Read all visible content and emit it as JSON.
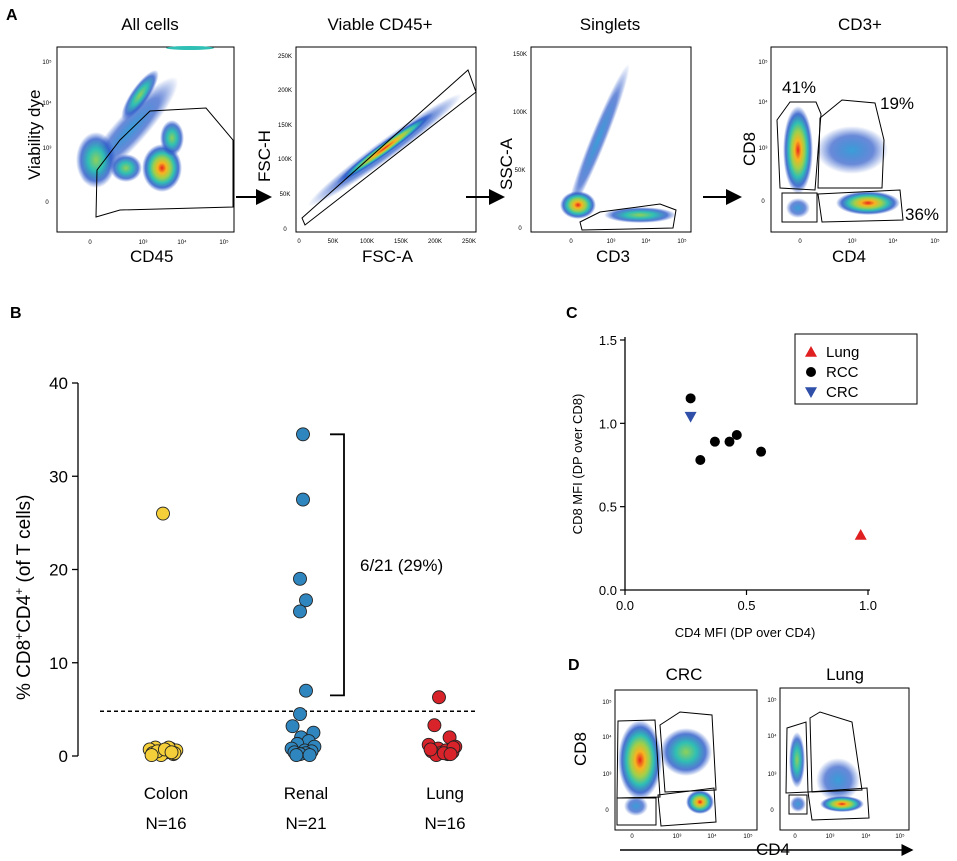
{
  "figure_labels": {
    "a": "A",
    "b": "B",
    "c": "C",
    "d": "D"
  },
  "panel_a": {
    "plots": [
      {
        "title": "All cells",
        "xlabel": "CD45",
        "ylabel": "Viability dye",
        "xticks": [
          "0",
          "10³",
          "10⁴",
          "10⁵"
        ],
        "yticks": [
          "10⁵",
          "10⁴",
          "10³",
          "0"
        ],
        "percents": []
      },
      {
        "title": "Viable CD45+",
        "xlabel": "FSC-A",
        "ylabel": "FSC-H",
        "xticks": [
          "0",
          "50K",
          "100K",
          "150K",
          "200K",
          "250K"
        ],
        "yticks": [
          "250K",
          "200K",
          "150K",
          "100K",
          "50K",
          "0"
        ],
        "percents": []
      },
      {
        "title": "Singlets",
        "xlabel": "CD3",
        "ylabel": "SSC-A",
        "xticks": [
          "0",
          "10³",
          "10⁴",
          "10⁵"
        ],
        "yticks": [
          "150K",
          "100K",
          "50K",
          "0"
        ],
        "percents": []
      },
      {
        "title": "CD3+",
        "xlabel": "CD4",
        "ylabel": "CD8",
        "xticks": [
          "0",
          "10³",
          "10⁴",
          "10⁵"
        ],
        "yticks": [
          "10⁵",
          "10⁴",
          "10³",
          "0"
        ],
        "percents": [
          "41%",
          "19%",
          "36%"
        ]
      }
    ]
  },
  "panel_d": {
    "plots": [
      {
        "title": "CRC",
        "ylabel": "CD8",
        "xticks": [
          "0",
          "10³",
          "10⁴",
          "10⁵"
        ],
        "yticks": [
          "10⁵",
          "10⁴",
          "10³",
          "0"
        ]
      },
      {
        "title": "Lung",
        "xticks": [
          "0",
          "10³",
          "10⁴",
          "10⁵"
        ],
        "yticks": [
          "10⁵",
          "10⁴",
          "10³",
          "0"
        ]
      }
    ],
    "xlabel": "CD4"
  },
  "chart_data": [
    {
      "type": "scatter",
      "panel": "B",
      "ylabel_main": "% CD8",
      "ylabel_sup1": "+",
      "ylabel_mid": "CD4",
      "ylabel_sup2": "+",
      "ylabel_tail": " (of T cells)",
      "ylim": [
        0,
        40
      ],
      "yticks": [
        0,
        10,
        20,
        30,
        40
      ],
      "threshold": 4.8,
      "bracket": {
        "from": 6.5,
        "to": 34.5,
        "label": "6/21 (29%)"
      },
      "series": [
        {
          "name": "Colon",
          "n_label": "N=16",
          "color": "#f5cf3a",
          "values": [
            26.0,
            0.9,
            0.8,
            0.7,
            0.6,
            0.5,
            0.4,
            0.3,
            0.2,
            0.1,
            0.9,
            0.5,
            0.3,
            0.1,
            0.7,
            0.4
          ]
        },
        {
          "name": "Renal",
          "n_label": "N=21",
          "color": "#2f86be",
          "values": [
            34.5,
            27.5,
            19.0,
            16.7,
            15.5,
            7.0,
            4.5,
            3.2,
            2.5,
            2.0,
            1.6,
            1.3,
            1.0,
            0.8,
            0.6,
            0.5,
            0.4,
            0.3,
            0.2,
            0.1,
            0.1
          ]
        },
        {
          "name": "Lung",
          "n_label": "N=16",
          "color": "#d8232a",
          "values": [
            6.3,
            3.3,
            2.0,
            1.2,
            1.0,
            0.8,
            0.6,
            0.5,
            0.4,
            0.3,
            0.2,
            0.1,
            0.9,
            0.7,
            0.3,
            0.2
          ]
        }
      ]
    },
    {
      "type": "scatter",
      "panel": "C",
      "xlabel": "CD4 MFI (DP over CD4)",
      "ylabel": "CD8 MFI (DP over CD8)",
      "xlim": [
        0,
        1.0
      ],
      "ylim": [
        0,
        1.5
      ],
      "xticks": [
        "0.0",
        "0.5",
        "1.0"
      ],
      "yticks": [
        "0.0",
        "0.5",
        "1.0",
        "1.5"
      ],
      "legend_position": "top-right",
      "series": [
        {
          "name": "Lung",
          "marker": "triangle-up",
          "color": "#e02020",
          "points": [
            [
              0.97,
              0.33
            ]
          ]
        },
        {
          "name": "RCC",
          "marker": "circle",
          "color": "#000000",
          "points": [
            [
              0.27,
              1.15
            ],
            [
              0.31,
              0.78
            ],
            [
              0.37,
              0.89
            ],
            [
              0.43,
              0.89
            ],
            [
              0.46,
              0.93
            ],
            [
              0.56,
              0.83
            ]
          ]
        },
        {
          "name": "CRC",
          "marker": "triangle-down",
          "color": "#2f4fa8",
          "points": [
            [
              0.27,
              1.04
            ]
          ]
        }
      ]
    }
  ]
}
